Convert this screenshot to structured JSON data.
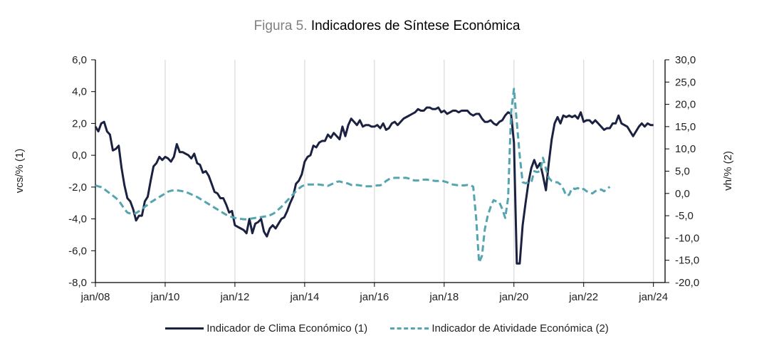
{
  "chart_data": {
    "type": "line",
    "title_prefix": "Figura 5.",
    "title": "Indicadores de Síntese Económica",
    "xlabel": "",
    "ylabel_left": "vcs/% (1)",
    "ylabel_right": "vh/% (2)",
    "ylim_left": [
      -8,
      6
    ],
    "ylim_right": [
      -20,
      30
    ],
    "yticks_left": [
      "6,0",
      "4,0",
      "2,0",
      "0,0",
      "-2,0",
      "-4,0",
      "-6,0",
      "-8,0"
    ],
    "yticks_left_values": [
      6,
      4,
      2,
      0,
      -2,
      -4,
      -6,
      -8
    ],
    "yticks_right": [
      "30,0",
      "25,0",
      "20,0",
      "15,0",
      "10,0",
      "5,0",
      "0,0",
      "-5,0",
      "-10,0",
      "-15,0",
      "-20,0"
    ],
    "yticks_right_values": [
      30,
      25,
      20,
      15,
      10,
      5,
      0,
      -5,
      -10,
      -15,
      -20
    ],
    "xticks": [
      "jan/08",
      "jan/10",
      "jan/12",
      "jan/14",
      "jan/16",
      "jan/18",
      "jan/20",
      "jan/22",
      "jan/24"
    ],
    "x_start": "2008-01",
    "x_range_months": [
      0,
      196
    ],
    "grid": "vertical",
    "legend_position": "bottom",
    "series": [
      {
        "name": "Indicador de Clima Económico (1)",
        "axis": "left",
        "style": "solid",
        "color": "#1b2140",
        "values": [
          1.8,
          1.5,
          2.0,
          2.1,
          1.5,
          1.3,
          0.3,
          0.4,
          0.6,
          -0.8,
          -1.9,
          -2.7,
          -2.9,
          -3.4,
          -4.1,
          -3.8,
          -3.8,
          -2.9,
          -2.6,
          -1.6,
          -0.7,
          -0.5,
          -0.1,
          -0.3,
          -0.1,
          -0.2,
          -0.4,
          -0.1,
          0.7,
          0.2,
          0.2,
          0.1,
          0.0,
          -0.2,
          0.1,
          -0.5,
          -0.6,
          -1.1,
          -1.0,
          -1.3,
          -1.8,
          -2.3,
          -2.4,
          -2.7,
          -2.7,
          -3.1,
          -3.6,
          -3.5,
          -4.4,
          -4.5,
          -4.6,
          -4.7,
          -4.9,
          -4.0,
          -4.9,
          -4.3,
          -4.2,
          -4.0,
          -4.8,
          -5.1,
          -4.6,
          -4.4,
          -4.6,
          -4.3,
          -4.0,
          -3.9,
          -3.5,
          -3.0,
          -2.6,
          -1.8,
          -1.6,
          -1.2,
          -0.4,
          -0.1,
          0.0,
          0.6,
          0.5,
          0.8,
          0.9,
          0.9,
          1.3,
          1.1,
          1.4,
          1.2,
          1.0,
          1.8,
          1.2,
          1.9,
          2.3,
          2.1,
          1.9,
          2.2,
          1.8,
          1.9,
          1.9,
          1.8,
          1.8,
          1.9,
          1.7,
          2.0,
          1.6,
          1.7,
          2.0,
          2.1,
          1.9,
          2.1,
          2.3,
          2.4,
          2.5,
          2.6,
          2.7,
          2.9,
          2.8,
          2.8,
          3.0,
          3.0,
          2.9,
          2.9,
          3.0,
          2.7,
          2.8,
          2.6,
          2.7,
          2.8,
          2.8,
          2.7,
          2.8,
          2.8,
          2.8,
          2.6,
          2.5,
          2.6,
          2.6,
          2.3,
          2.1,
          2.1,
          2.2,
          2.0,
          1.9,
          2.1,
          2.2,
          2.5,
          2.7,
          2.6,
          0.8,
          -6.8,
          -6.8,
          -4.4,
          -3.0,
          -1.7,
          -0.8,
          -0.3,
          -0.8,
          -0.5,
          -1.3,
          -2.2,
          -0.5,
          1.0,
          2.0,
          2.4,
          2.0,
          2.5,
          2.4,
          2.5,
          2.4,
          2.5,
          2.3,
          2.7,
          2.1,
          2.2,
          2.2,
          2.0,
          2.2,
          2.0,
          1.8,
          1.6,
          1.7,
          1.7,
          2.0,
          2.0,
          2.5,
          2.0,
          1.9,
          1.8,
          1.5,
          1.2,
          1.5,
          1.8,
          2.0,
          1.8,
          2.0,
          1.9,
          1.9
        ]
      },
      {
        "name": "Indicador de Atividade Económica (2)",
        "axis": "right",
        "style": "dashed",
        "color": "#55a5b0",
        "values": [
          1.8,
          1.6,
          1.4,
          1.0,
          0.5,
          0.0,
          -0.5,
          -1.0,
          -1.6,
          -2.5,
          -3.5,
          -4.3,
          -4.5,
          -4.6,
          -4.4,
          -4.0,
          -3.5,
          -3.0,
          -2.5,
          -2.0,
          -1.6,
          -1.2,
          -0.8,
          -0.4,
          0.0,
          0.4,
          0.6,
          0.7,
          0.7,
          0.6,
          0.5,
          0.3,
          0.1,
          -0.2,
          -0.5,
          -0.8,
          -1.2,
          -1.6,
          -2.0,
          -2.4,
          -2.8,
          -3.2,
          -3.6,
          -4.0,
          -4.4,
          -4.8,
          -5.1,
          -5.3,
          -5.5,
          -5.6,
          -5.7,
          -5.8,
          -5.8,
          -5.7,
          -5.6,
          -5.5,
          -5.4,
          -5.3,
          -5.2,
          -5.1,
          -4.9,
          -4.6,
          -4.2,
          -3.6,
          -3.0,
          -2.3,
          -1.6,
          -0.9,
          -0.2,
          0.5,
          1.1,
          1.6,
          1.9,
          2.0,
          2.0,
          2.0,
          2.0,
          2.0,
          1.9,
          1.8,
          1.7,
          2.0,
          2.3,
          2.6,
          2.7,
          2.5,
          2.4,
          2.2,
          1.9,
          1.9,
          1.9,
          1.8,
          1.7,
          1.6,
          1.6,
          1.6,
          1.7,
          1.8,
          1.8,
          2.2,
          2.8,
          3.2,
          3.4,
          3.5,
          3.5,
          3.5,
          3.5,
          3.5,
          3.3,
          3.0,
          2.9,
          2.9,
          3.0,
          3.1,
          3.1,
          3.0,
          2.9,
          2.8,
          2.8,
          2.9,
          2.7,
          2.5,
          2.2,
          2.0,
          1.9,
          1.8,
          1.8,
          1.8,
          1.9,
          1.9,
          1.5,
          -5.5,
          -15.5,
          -14.0,
          -8.0,
          -5.0,
          -3.0,
          -1.5,
          -1.8,
          -2.0,
          -3.5,
          -5.5,
          -1.0,
          18.0,
          23.5,
          16.0,
          8.5,
          2.5,
          2.3,
          2.5,
          2.5,
          5.0,
          4.8,
          5.0,
          8.0,
          5.5,
          3.5,
          2.8,
          2.5,
          2.5,
          2.0,
          1.0,
          -0.5,
          -0.3,
          1.2,
          1.0,
          1.2,
          0.8,
          1.0,
          0.5,
          0.2,
          0.0,
          0.5,
          0.8,
          0.9,
          0.5,
          1.0,
          1.5
        ]
      }
    ]
  }
}
